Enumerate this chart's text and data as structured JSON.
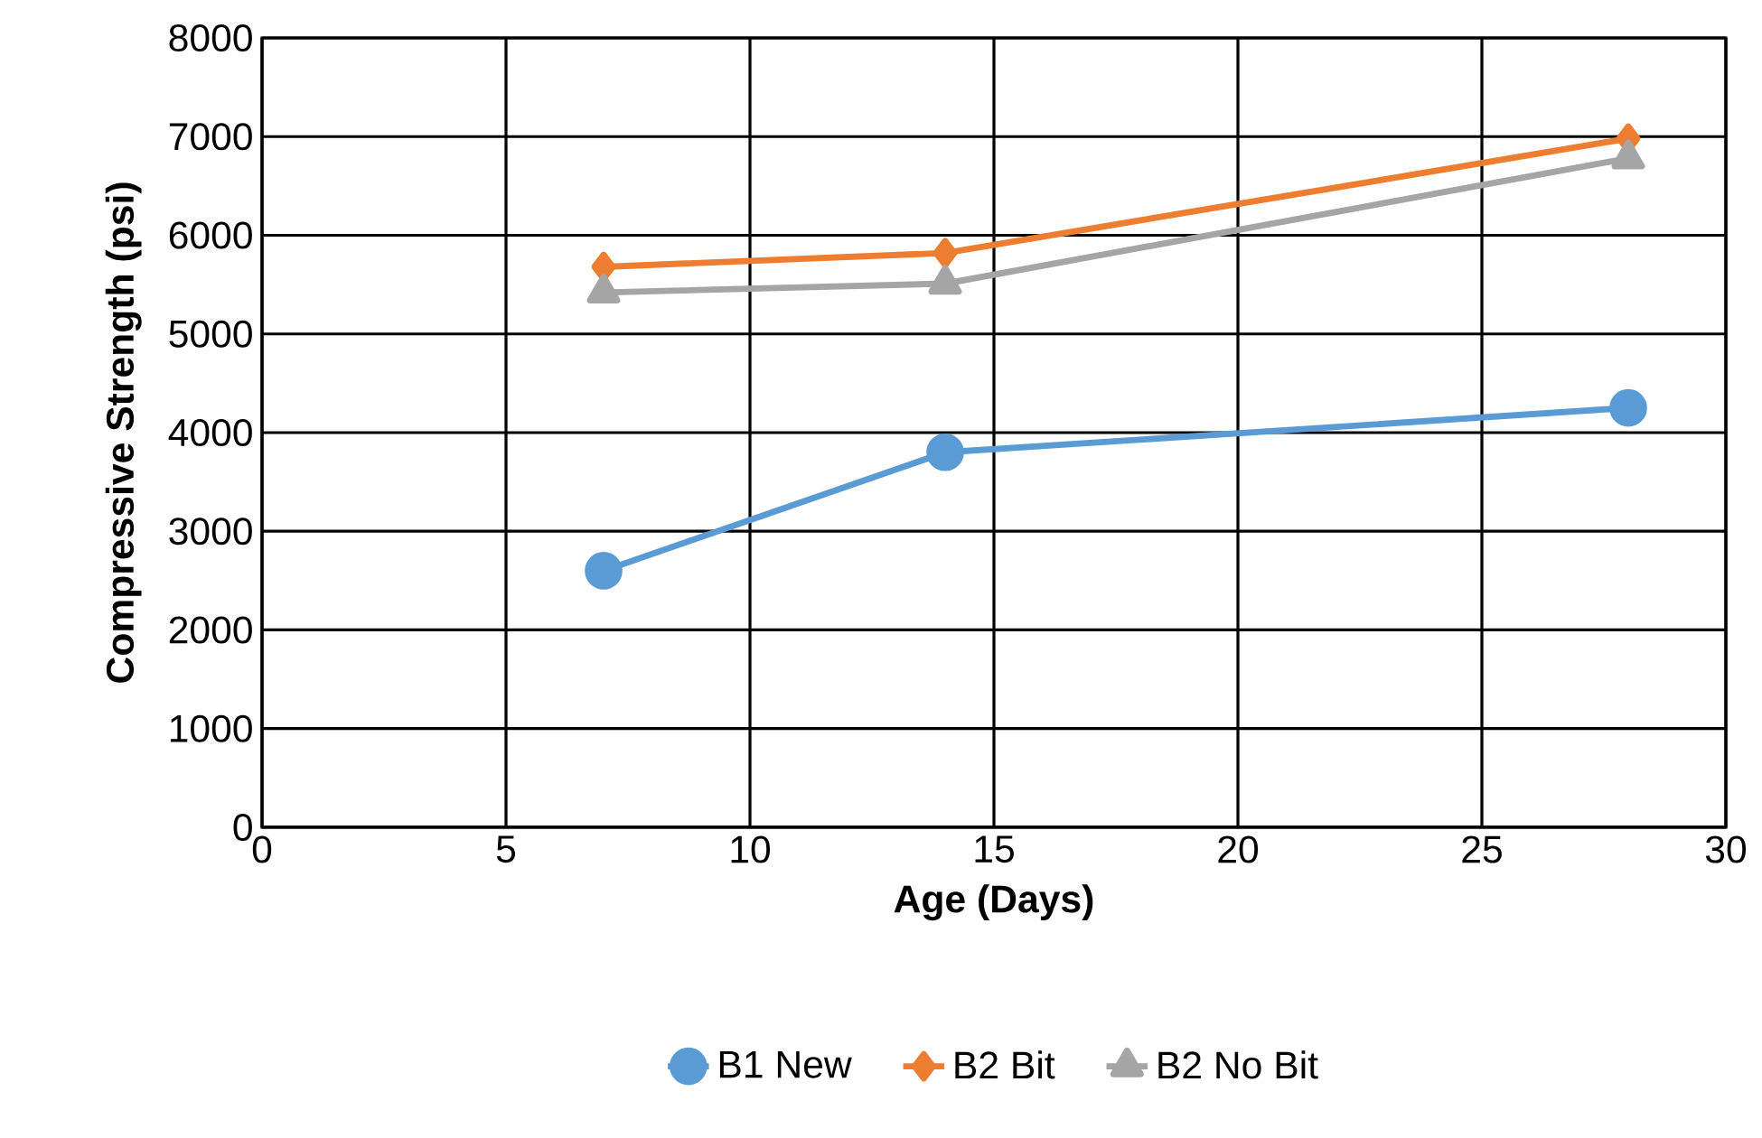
{
  "chart_data": {
    "type": "line",
    "xlabel": "Age (Days)",
    "ylabel": "Compressive Strength (psi)",
    "x": [
      7,
      14,
      28
    ],
    "series": [
      {
        "name": "B1 New",
        "color": "#5b9bd5",
        "marker": "circle",
        "values": [
          2600,
          3800,
          4250
        ]
      },
      {
        "name": "B2 Bit",
        "color": "#ed7d31",
        "marker": "diamond",
        "values": [
          5680,
          5820,
          6980
        ]
      },
      {
        "name": "B2 No Bit",
        "color": "#a5a5a5",
        "marker": "triangle",
        "values": [
          5420,
          5510,
          6780
        ]
      }
    ],
    "xlim": [
      0,
      30
    ],
    "xticks": [
      0,
      5,
      10,
      15,
      20,
      25,
      30
    ],
    "ylim": [
      0,
      8000
    ],
    "yticks": [
      0,
      1000,
      2000,
      3000,
      4000,
      5000,
      6000,
      7000,
      8000
    ],
    "grid": true,
    "legend": "bottom",
    "line_style": "solid"
  }
}
